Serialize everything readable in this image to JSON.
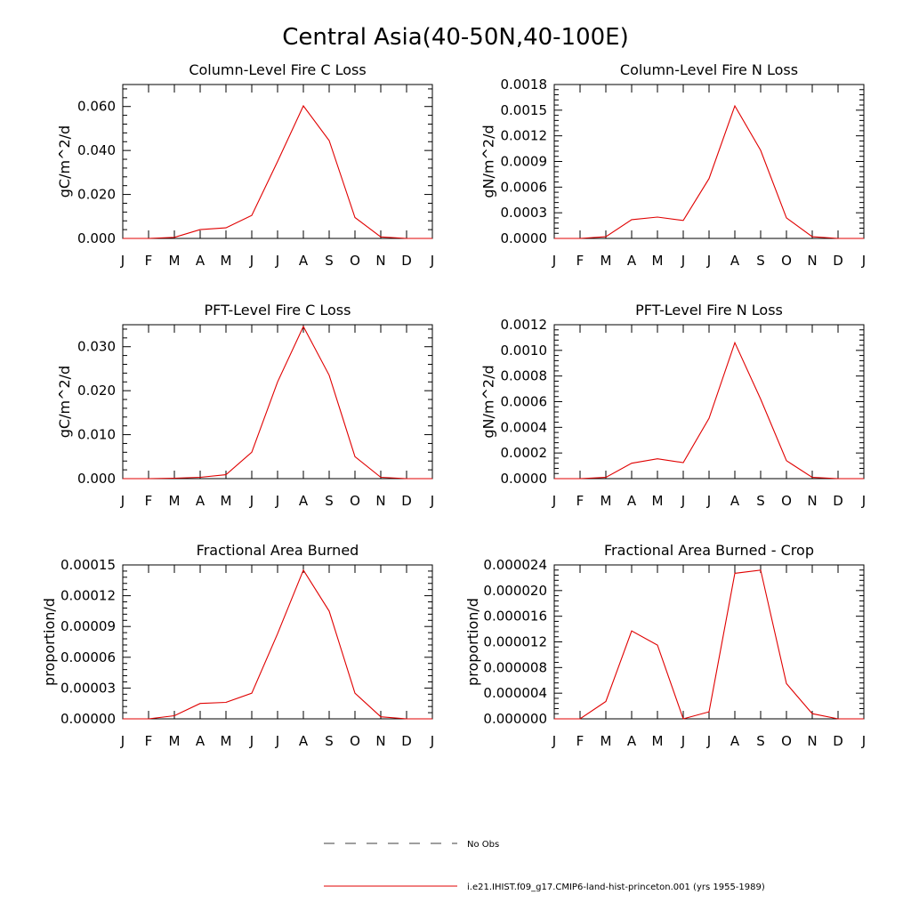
{
  "figure": {
    "title": "Central Asia(40-50N,40-100E)",
    "line_color": "#e00000",
    "months": [
      "J",
      "F",
      "M",
      "A",
      "M",
      "J",
      "J",
      "A",
      "S",
      "O",
      "N",
      "D",
      "J"
    ]
  },
  "legend": {
    "obs_label": "No Obs",
    "model_label": "i.e21.IHIST.f09_g17.CMIP6-land-hist-princeton.001 (yrs 1955-1989)"
  },
  "chart_data": [
    {
      "type": "line",
      "title": "Column-Level Fire C Loss",
      "ylabel": "gC/m^2/d",
      "ylim": [
        0,
        0.07
      ],
      "yticks": [
        "0.000",
        "0.020",
        "0.040",
        "0.060"
      ],
      "x": [
        "J",
        "F",
        "M",
        "A",
        "M",
        "J",
        "J",
        "A",
        "S",
        "O",
        "N",
        "D",
        "J"
      ],
      "series": [
        {
          "values": [
            0,
            0,
            0.0005,
            0.004,
            0.0048,
            0.0105,
            0.035,
            0.0603,
            0.0445,
            0.0095,
            0.0007,
            0,
            0
          ]
        }
      ]
    },
    {
      "type": "line",
      "title": "Column-Level Fire N Loss",
      "ylabel": "gN/m^2/d",
      "ylim": [
        0,
        0.0018
      ],
      "yticks": [
        "0.0000",
        "0.0003",
        "0.0006",
        "0.0009",
        "0.0012",
        "0.0015",
        "0.0018"
      ],
      "x": [
        "J",
        "F",
        "M",
        "A",
        "M",
        "J",
        "J",
        "A",
        "S",
        "O",
        "N",
        "D",
        "J"
      ],
      "series": [
        {
          "values": [
            0,
            0,
            2e-05,
            0.00022,
            0.00025,
            0.00021,
            0.0007,
            0.00155,
            0.00103,
            0.00024,
            2e-05,
            0,
            0
          ]
        }
      ]
    },
    {
      "type": "line",
      "title": "PFT-Level Fire C Loss",
      "ylabel": "gC/m^2/d",
      "ylim": [
        0,
        0.035
      ],
      "yticks": [
        "0.000",
        "0.010",
        "0.020",
        "0.030"
      ],
      "x": [
        "J",
        "F",
        "M",
        "A",
        "M",
        "J",
        "J",
        "A",
        "S",
        "O",
        "N",
        "D",
        "J"
      ],
      "series": [
        {
          "values": [
            0,
            0,
            0.0001,
            0.0003,
            0.0009,
            0.006,
            0.022,
            0.0346,
            0.0235,
            0.005,
            0.0003,
            0,
            0
          ]
        }
      ]
    },
    {
      "type": "line",
      "title": "PFT-Level Fire N Loss",
      "ylabel": "gN/m^2/d",
      "ylim": [
        0,
        0.0012
      ],
      "yticks": [
        "0.0000",
        "0.0002",
        "0.0004",
        "0.0006",
        "0.0008",
        "0.0010",
        "0.0012"
      ],
      "x": [
        "J",
        "F",
        "M",
        "A",
        "M",
        "J",
        "J",
        "A",
        "S",
        "O",
        "N",
        "D",
        "J"
      ],
      "series": [
        {
          "values": [
            0,
            0,
            1e-05,
            0.00012,
            0.000155,
            0.000125,
            0.00047,
            0.00106,
            0.00062,
            0.00014,
            1e-05,
            0,
            0
          ]
        }
      ]
    },
    {
      "type": "line",
      "title": "Fractional Area Burned",
      "ylabel": "proportion/d",
      "ylim": [
        0,
        0.00015
      ],
      "yticks": [
        "0.00000",
        "0.00003",
        "0.00006",
        "0.00009",
        "0.00012",
        "0.00015"
      ],
      "x": [
        "J",
        "F",
        "M",
        "A",
        "M",
        "J",
        "J",
        "A",
        "S",
        "O",
        "N",
        "D",
        "J"
      ],
      "series": [
        {
          "values": [
            0,
            0,
            3e-06,
            1.5e-05,
            1.6e-05,
            2.5e-05,
            8.3e-05,
            0.000145,
            0.000105,
            2.5e-05,
            2e-06,
            0,
            0
          ]
        }
      ]
    },
    {
      "type": "line",
      "title": "Fractional Area Burned - Crop",
      "ylabel": "proportion/d",
      "ylim": [
        0,
        2.4e-05
      ],
      "yticks": [
        "0.000000",
        "0.000004",
        "0.000008",
        "0.000012",
        "0.000016",
        "0.000020",
        "0.000024"
      ],
      "x": [
        "J",
        "F",
        "M",
        "A",
        "M",
        "J",
        "J",
        "A",
        "S",
        "O",
        "N",
        "D",
        "J"
      ],
      "series": [
        {
          "values": [
            0,
            0,
            2.7e-06,
            1.37e-05,
            1.15e-05,
            0,
            1.1e-06,
            2.27e-05,
            2.32e-05,
            5.5e-06,
            8e-07,
            0,
            0
          ]
        }
      ]
    }
  ]
}
